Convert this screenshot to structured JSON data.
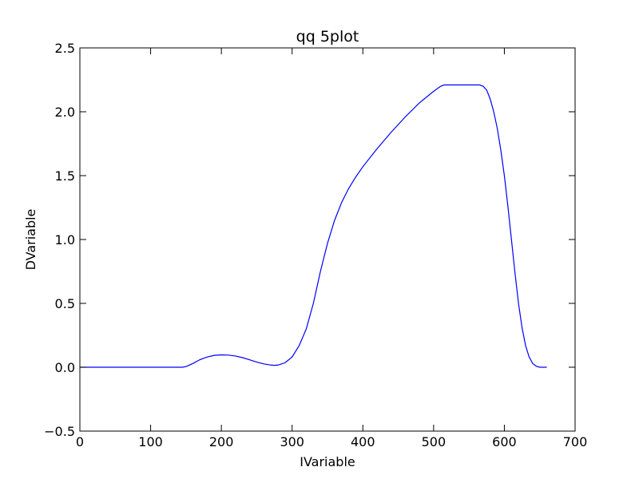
{
  "chart_data": {
    "type": "line",
    "title": "qq 5plot",
    "xlabel": "IVariable",
    "ylabel": "DVariable",
    "xlim": [
      0,
      700
    ],
    "ylim": [
      -0.5,
      2.5
    ],
    "xticks": [
      0,
      100,
      200,
      300,
      400,
      500,
      600,
      700
    ],
    "yticks": [
      -0.5,
      0.0,
      0.5,
      1.0,
      1.5,
      2.0,
      2.5
    ],
    "xtick_labels": [
      "0",
      "100",
      "200",
      "300",
      "400",
      "500",
      "600",
      "700"
    ],
    "ytick_labels": [
      "−0.5",
      "0.0",
      "0.5",
      "1.0",
      "1.5",
      "2.0",
      "2.5"
    ],
    "grid": false,
    "line_color": "#0000ff",
    "series": [
      {
        "x": [
          0,
          50,
          100,
          145,
          150,
          160,
          170,
          180,
          190,
          200,
          210,
          220,
          230,
          240,
          250,
          260,
          270,
          275,
          280,
          290,
          300,
          310,
          320,
          330,
          340,
          350,
          360,
          370,
          380,
          390,
          400,
          420,
          440,
          460,
          480,
          500,
          510,
          515,
          530,
          550,
          565,
          570,
          575,
          580,
          585,
          590,
          595,
          600,
          605,
          610,
          615,
          620,
          625,
          630,
          635,
          640,
          645,
          650,
          655,
          660
        ],
        "y": [
          0.0,
          0.0,
          0.0,
          0.0,
          0.005,
          0.03,
          0.06,
          0.08,
          0.093,
          0.097,
          0.095,
          0.088,
          0.075,
          0.058,
          0.04,
          0.026,
          0.017,
          0.015,
          0.017,
          0.035,
          0.08,
          0.17,
          0.3,
          0.5,
          0.75,
          0.97,
          1.15,
          1.29,
          1.4,
          1.49,
          1.57,
          1.71,
          1.84,
          1.96,
          2.07,
          2.16,
          2.2,
          2.21,
          2.21,
          2.21,
          2.21,
          2.2,
          2.17,
          2.1,
          2.0,
          1.87,
          1.7,
          1.5,
          1.26,
          1.0,
          0.74,
          0.5,
          0.31,
          0.17,
          0.08,
          0.03,
          0.008,
          0.0,
          0.0,
          0.0
        ]
      }
    ]
  }
}
